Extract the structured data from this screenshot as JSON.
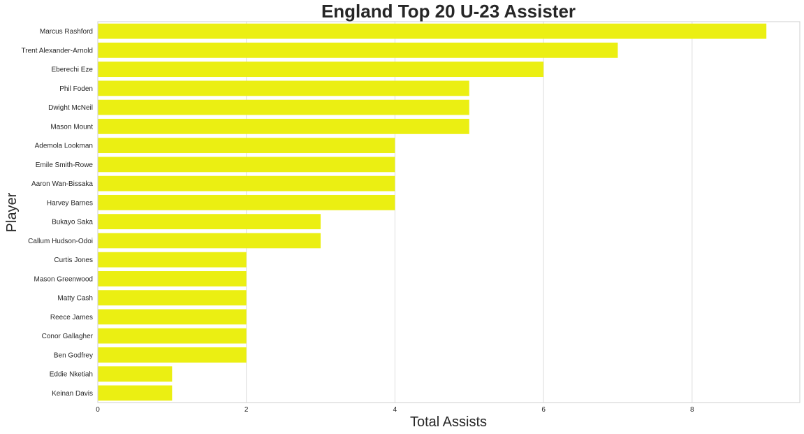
{
  "chart_data": {
    "type": "bar",
    "orientation": "horizontal",
    "title": "England Top 20 U-23 Assister",
    "xlabel": "Total Assists",
    "ylabel": "Player",
    "xlim": [
      0,
      9.45
    ],
    "xticks": [
      0,
      2,
      4,
      6,
      8
    ],
    "grid": true,
    "bar_color": "#ebef12",
    "categories": [
      "Marcus Rashford",
      "Trent Alexander-Arnold",
      "Eberechi Eze",
      "Phil Foden",
      "Dwight McNeil",
      "Mason Mount",
      "Ademola Lookman",
      "Emile Smith-Rowe",
      "Aaron Wan-Bissaka",
      "Harvey Barnes",
      "Bukayo Saka",
      "Callum Hudson-Odoi",
      "Curtis Jones",
      "Mason Greenwood",
      "Matty Cash",
      "Reece James",
      "Conor Gallagher",
      "Ben Godfrey",
      "Eddie Nketiah",
      "Keinan Davis"
    ],
    "values": [
      9,
      7,
      6,
      5,
      5,
      5,
      4,
      4,
      4,
      4,
      3,
      3,
      2,
      2,
      2,
      2,
      2,
      2,
      1,
      1
    ]
  }
}
